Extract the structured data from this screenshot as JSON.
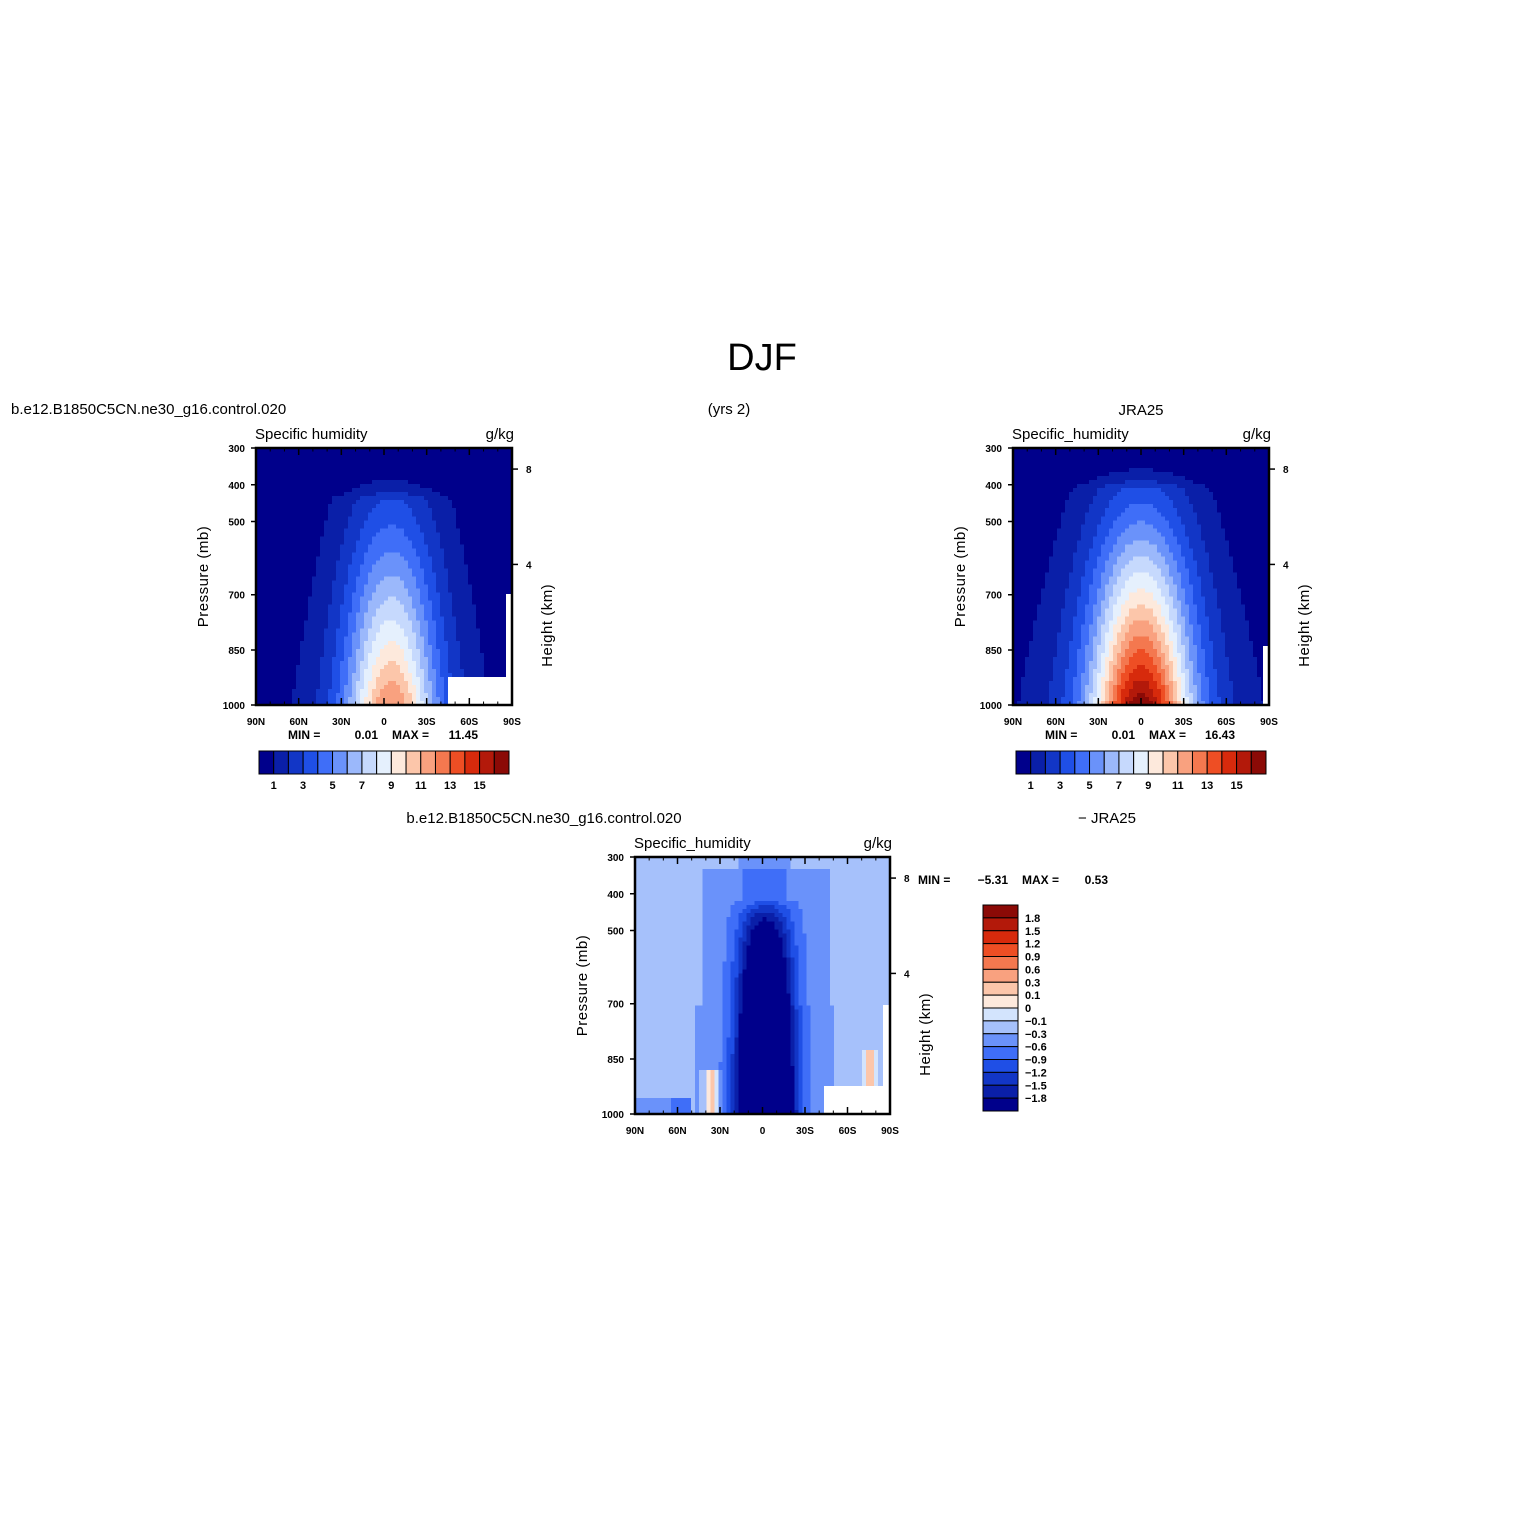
{
  "figure": {
    "title": "DJF",
    "case_name": "b.e12.B1850C5CN.ne30_g16.control.020",
    "years_label": "(yrs 2)",
    "obs_name": "JRA25",
    "diff_case_name": "b.e12.B1850C5CN.ne30_g16.control.020",
    "diff_obs_label": "− JRA25"
  },
  "colors": {
    "seq": [
      "#00008b",
      "#0a1fa8",
      "#1236c6",
      "#1f4fe6",
      "#3f6ef8",
      "#6a92fa",
      "#9bb8fb",
      "#c6d9fd",
      "#e5f0fd",
      "#fde9dc",
      "#fcc6aa",
      "#f9a17f",
      "#f4784f",
      "#ee4e24",
      "#d72a0c",
      "#b3190a",
      "#8b0a06"
    ],
    "diff": [
      "#00008b",
      "#0a1fa8",
      "#1236c6",
      "#1f4fe6",
      "#3f6ef8",
      "#6a92fa",
      "#a6c1fb",
      "#d3e4fd",
      "#fde9dc",
      "#fcc6aa",
      "#f9a17f",
      "#f4784f",
      "#ee4e24",
      "#d72a0c",
      "#b3190a",
      "#8b0a06"
    ]
  },
  "chart_data": [
    {
      "type": "heatmap",
      "panel": "model",
      "left_title": "Specific humidity",
      "right_title": "g/kg",
      "ylabel": "Pressure (mb)",
      "ylabel_right": "Height (km)",
      "x_ticks": [
        "90N",
        "60N",
        "30N",
        "0",
        "30S",
        "60S",
        "90S"
      ],
      "y_ticks": [
        "300",
        "400",
        "500",
        "700",
        "850",
        "1000"
      ],
      "y_right_ticks": [
        "8",
        "4"
      ],
      "min_label": "MIN =",
      "min_value": "0.01",
      "max_label": "MAX =",
      "max_value": "11.45",
      "colorbar_labels": [
        "1",
        "3",
        "5",
        "7",
        "9",
        "11",
        "13",
        "15"
      ],
      "levels": [
        1,
        2,
        3,
        4,
        5,
        6,
        7,
        8,
        9,
        10,
        11,
        12,
        13,
        14,
        15,
        16
      ],
      "xlim": [
        -90,
        90
      ],
      "ylim": [
        1000,
        300
      ],
      "field": {
        "peak": 11.45,
        "center_lat": -5,
        "x_width": 21,
        "p_scale": 650,
        "p_power": 1.25,
        "cap_ptop": 440,
        "cap_sigma": 30
      }
    },
    {
      "type": "heatmap",
      "panel": "obs",
      "left_title": "Specific_humidity",
      "right_title": "g/kg",
      "ylabel": "Pressure (mb)",
      "ylabel_right": "Height (km)",
      "x_ticks": [
        "90N",
        "60N",
        "30N",
        "0",
        "30S",
        "60S",
        "90S"
      ],
      "y_ticks": [
        "300",
        "400",
        "500",
        "700",
        "850",
        "1000"
      ],
      "y_right_ticks": [
        "8",
        "4"
      ],
      "min_label": "MIN =",
      "min_value": "0.01",
      "max_label": "MAX =",
      "max_value": "16.43",
      "colorbar_labels": [
        "1",
        "3",
        "5",
        "7",
        "9",
        "11",
        "13",
        "15"
      ],
      "levels": [
        1,
        2,
        3,
        4,
        5,
        6,
        7,
        8,
        9,
        10,
        11,
        12,
        13,
        14,
        15,
        16
      ],
      "xlim": [
        -90,
        90
      ],
      "ylim": [
        1000,
        300
      ],
      "field": {
        "peak": 16.43,
        "center_lat": 0,
        "x_width": 23,
        "p_scale": 620,
        "p_power": 1.2,
        "cap_ptop": 410,
        "cap_sigma": 34
      }
    },
    {
      "type": "heatmap",
      "panel": "diff",
      "left_title": "Specific_humidity",
      "right_title": "g/kg",
      "ylabel": "Pressure (mb)",
      "ylabel_right": "Height (km)",
      "x_ticks": [
        "90N",
        "60N",
        "30N",
        "0",
        "30S",
        "60S",
        "90S"
      ],
      "y_ticks": [
        "300",
        "400",
        "500",
        "700",
        "850",
        "1000"
      ],
      "y_right_ticks": [
        "8",
        "4"
      ],
      "min_label": "MIN =",
      "min_value": "−5.31",
      "max_label": "MAX =",
      "max_value": "0.53",
      "colorbar_labels": [
        "1.8",
        "1.5",
        "1.2",
        "0.9",
        "0.6",
        "0.3",
        "0.1",
        "0",
        "−0.1",
        "−0.3",
        "−0.6",
        "−0.9",
        "−1.2",
        "−1.5",
        "−1.8"
      ],
      "levels": [
        -1.8,
        -1.5,
        -1.2,
        -0.9,
        -0.6,
        -0.3,
        -0.1,
        0,
        0.1,
        0.3,
        0.6,
        0.9,
        1.2,
        1.5,
        1.8
      ],
      "xlim": [
        -90,
        90
      ],
      "ylim": [
        1000,
        300
      ]
    }
  ]
}
